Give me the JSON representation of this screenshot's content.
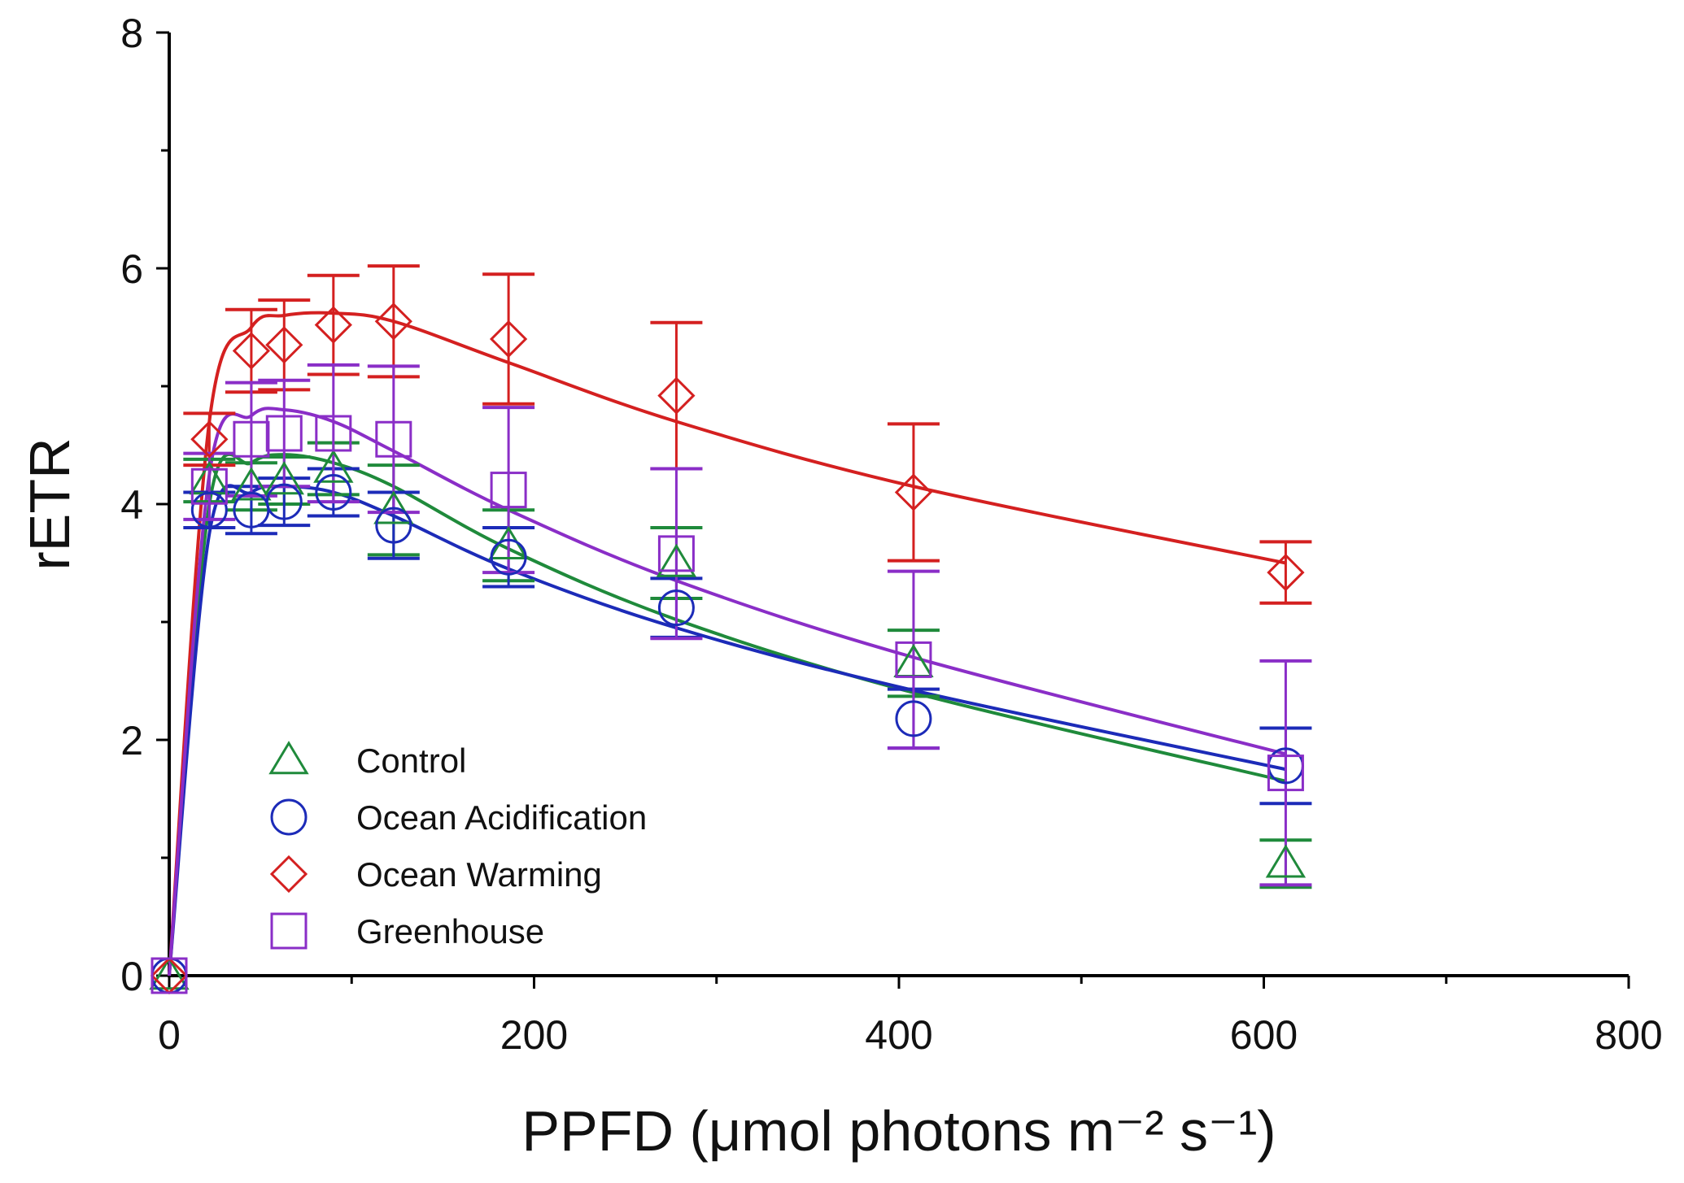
{
  "chart_data": {
    "type": "scatter",
    "title": "",
    "xlabel": "PPFD (μmol photons m⁻² s⁻¹)",
    "ylabel": "rETR",
    "xlim": [
      0,
      800
    ],
    "ylim": [
      0,
      8
    ],
    "x_ticks": [
      0,
      200,
      400,
      600,
      800
    ],
    "x_tick_labels": [
      "0",
      "200",
      "400",
      "600",
      "800"
    ],
    "y_ticks": [
      0,
      2,
      4,
      6,
      8
    ],
    "y_tick_labels": [
      "0",
      "2",
      "4",
      "6",
      "8"
    ],
    "x_minor_ticks": [
      100,
      300,
      500,
      700
    ],
    "y_minor_ticks": [
      1,
      3,
      5,
      7
    ],
    "grid": false,
    "legend_position": "bottom-left",
    "x": [
      0,
      22,
      45,
      63,
      90,
      123,
      186,
      278,
      408,
      612
    ],
    "series": [
      {
        "name": "Control",
        "marker": "triangle",
        "color": "#1f8a3b",
        "values": [
          0,
          4.2,
          4.15,
          4.2,
          4.3,
          3.95,
          3.65,
          3.5,
          2.65,
          0.95
        ],
        "errors": [
          0,
          0.18,
          0.2,
          0.2,
          0.22,
          0.38,
          0.3,
          0.3,
          0.28,
          0.2
        ],
        "fit": [
          0,
          4.0,
          4.35,
          4.42,
          4.35,
          4.15,
          3.62,
          3.02,
          2.4,
          1.65
        ]
      },
      {
        "name": "Ocean Acidification",
        "marker": "circle",
        "color": "#1c2bb8",
        "values": [
          0,
          3.95,
          3.95,
          4.02,
          4.1,
          3.82,
          3.55,
          3.12,
          2.18,
          1.78
        ],
        "errors": [
          0,
          0.15,
          0.2,
          0.2,
          0.2,
          0.28,
          0.25,
          0.25,
          0.25,
          0.32
        ],
        "fit": [
          0,
          3.75,
          4.1,
          4.15,
          4.1,
          3.9,
          3.45,
          2.95,
          2.42,
          1.75
        ]
      },
      {
        "name": "Ocean Warming",
        "marker": "diamond",
        "color": "#d42020",
        "values": [
          0,
          4.55,
          5.3,
          5.35,
          5.52,
          5.55,
          5.4,
          4.92,
          4.1,
          3.42
        ],
        "errors": [
          0,
          0.22,
          0.35,
          0.38,
          0.42,
          0.47,
          0.55,
          0.62,
          0.58,
          0.26
        ],
        "fit": [
          0,
          4.7,
          5.5,
          5.6,
          5.62,
          5.55,
          5.2,
          4.7,
          4.15,
          3.5
        ]
      },
      {
        "name": "Greenhouse",
        "marker": "square",
        "color": "#8a2ec7",
        "values": [
          0,
          4.15,
          4.55,
          4.6,
          4.6,
          4.55,
          4.12,
          3.58,
          2.68,
          1.72
        ],
        "errors": [
          0,
          0.28,
          0.48,
          0.45,
          0.58,
          0.62,
          0.7,
          0.72,
          0.75,
          0.95
        ],
        "fit": [
          0,
          4.25,
          4.75,
          4.8,
          4.7,
          4.45,
          3.95,
          3.35,
          2.7,
          1.88
        ]
      }
    ]
  }
}
